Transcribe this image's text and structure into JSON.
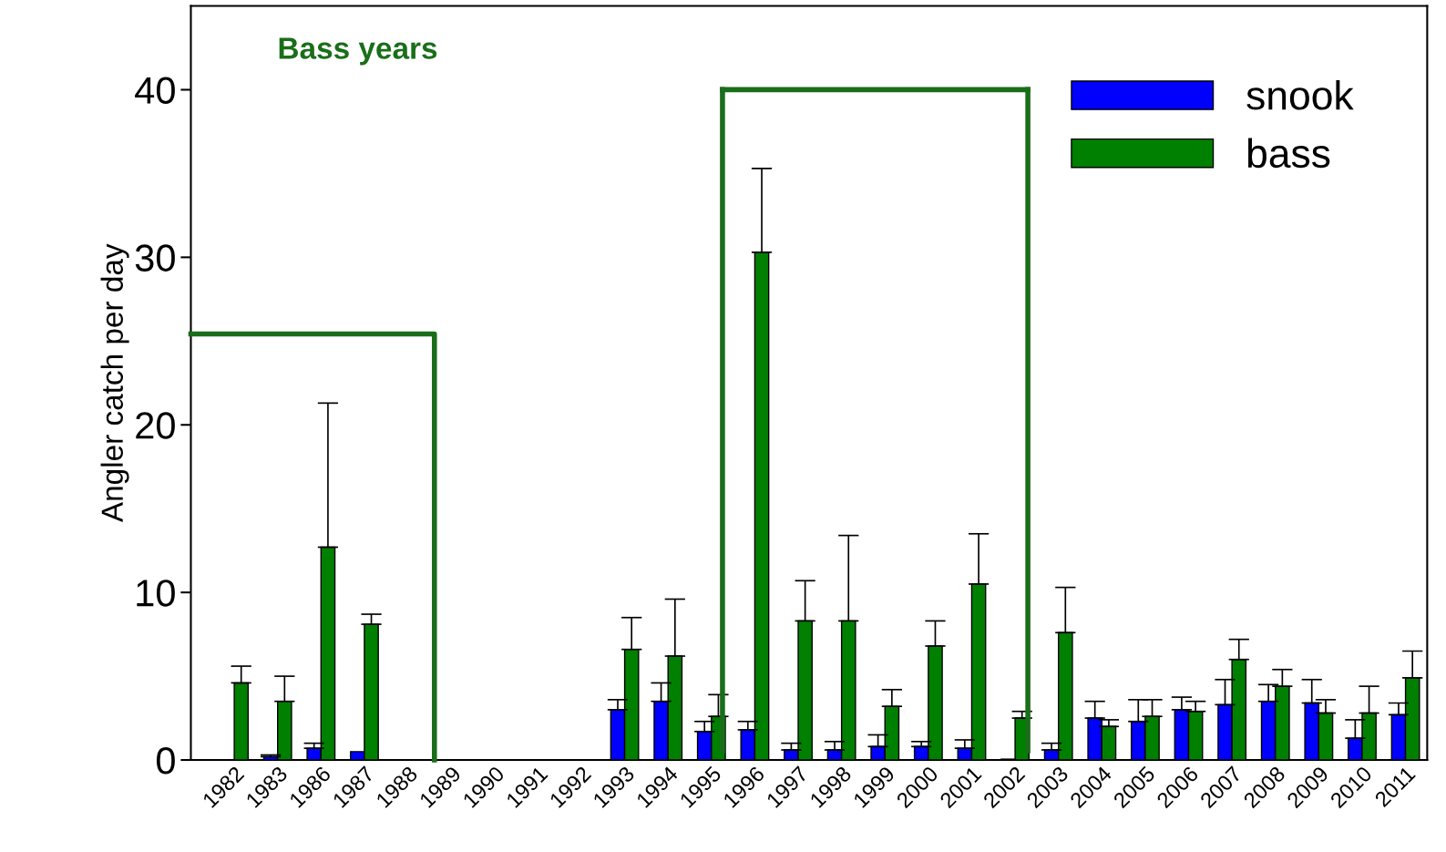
{
  "chart_data": {
    "type": "bar",
    "ylabel": "Angler catch per day",
    "categories": [
      "1982",
      "1983",
      "1986",
      "1987",
      "1988",
      "1989",
      "1990",
      "1991",
      "1992",
      "1993",
      "1994",
      "1995",
      "1996",
      "1997",
      "1998",
      "1999",
      "2000",
      "2001",
      "2002",
      "2003",
      "2004",
      "2005",
      "2006",
      "2007",
      "2008",
      "2009",
      "2010",
      "2011"
    ],
    "series": [
      {
        "name": "snook",
        "color": "#0000ff",
        "values": [
          null,
          0.2,
          0.7,
          0.5,
          null,
          null,
          null,
          null,
          null,
          3.0,
          3.5,
          1.7,
          1.8,
          0.6,
          0.6,
          0.8,
          0.8,
          0.7,
          0.05,
          0.6,
          2.5,
          2.3,
          3.0,
          3.3,
          3.5,
          3.4,
          1.3,
          2.7
        ],
        "errors": [
          null,
          [
            0.2,
            0.3
          ],
          [
            0.7,
            1.0
          ],
          null,
          null,
          null,
          null,
          null,
          null,
          [
            3.0,
            3.6
          ],
          [
            3.5,
            4.6
          ],
          [
            1.7,
            2.3
          ],
          [
            1.8,
            2.3
          ],
          [
            0.6,
            1.0
          ],
          [
            0.6,
            1.1
          ],
          [
            0.8,
            1.5
          ],
          [
            0.8,
            1.1
          ],
          [
            0.7,
            1.2
          ],
          null,
          [
            0.6,
            1.0
          ],
          [
            2.5,
            3.5
          ],
          [
            2.3,
            3.6
          ],
          [
            3.0,
            3.75
          ],
          [
            3.3,
            4.8
          ],
          [
            3.5,
            4.5
          ],
          [
            3.4,
            4.8
          ],
          [
            1.3,
            2.4
          ],
          [
            2.7,
            3.4
          ]
        ]
      },
      {
        "name": "bass",
        "color": "#008000",
        "values": [
          4.6,
          3.5,
          12.7,
          8.1,
          null,
          null,
          null,
          null,
          null,
          6.6,
          6.2,
          2.6,
          30.3,
          8.3,
          8.3,
          3.2,
          6.8,
          10.5,
          2.5,
          7.6,
          2.0,
          2.6,
          2.9,
          6.0,
          4.4,
          2.8,
          2.8,
          4.9
        ],
        "errors": [
          [
            4.6,
            5.6
          ],
          [
            3.5,
            5.0
          ],
          [
            12.7,
            21.3
          ],
          [
            8.1,
            8.7
          ],
          null,
          null,
          null,
          null,
          null,
          [
            6.6,
            8.5
          ],
          [
            6.2,
            9.6
          ],
          [
            2.6,
            3.9
          ],
          [
            30.3,
            35.3
          ],
          [
            8.3,
            10.7
          ],
          [
            8.3,
            13.4
          ],
          [
            3.2,
            4.2
          ],
          [
            6.8,
            8.3
          ],
          [
            10.5,
            13.5
          ],
          [
            2.5,
            2.9
          ],
          [
            7.6,
            10.3
          ],
          [
            2.0,
            2.4
          ],
          [
            2.6,
            3.6
          ],
          [
            2.9,
            3.5
          ],
          [
            6.0,
            7.2
          ],
          [
            4.4,
            5.4
          ],
          [
            2.8,
            3.6
          ],
          [
            2.8,
            4.4
          ],
          [
            4.9,
            6.5
          ]
        ]
      }
    ],
    "ylim": [
      0,
      45
    ],
    "yticks": [
      0,
      10,
      20,
      30,
      40
    ],
    "annotations": [
      "Bass years"
    ],
    "grid": false,
    "legend": "top right"
  }
}
